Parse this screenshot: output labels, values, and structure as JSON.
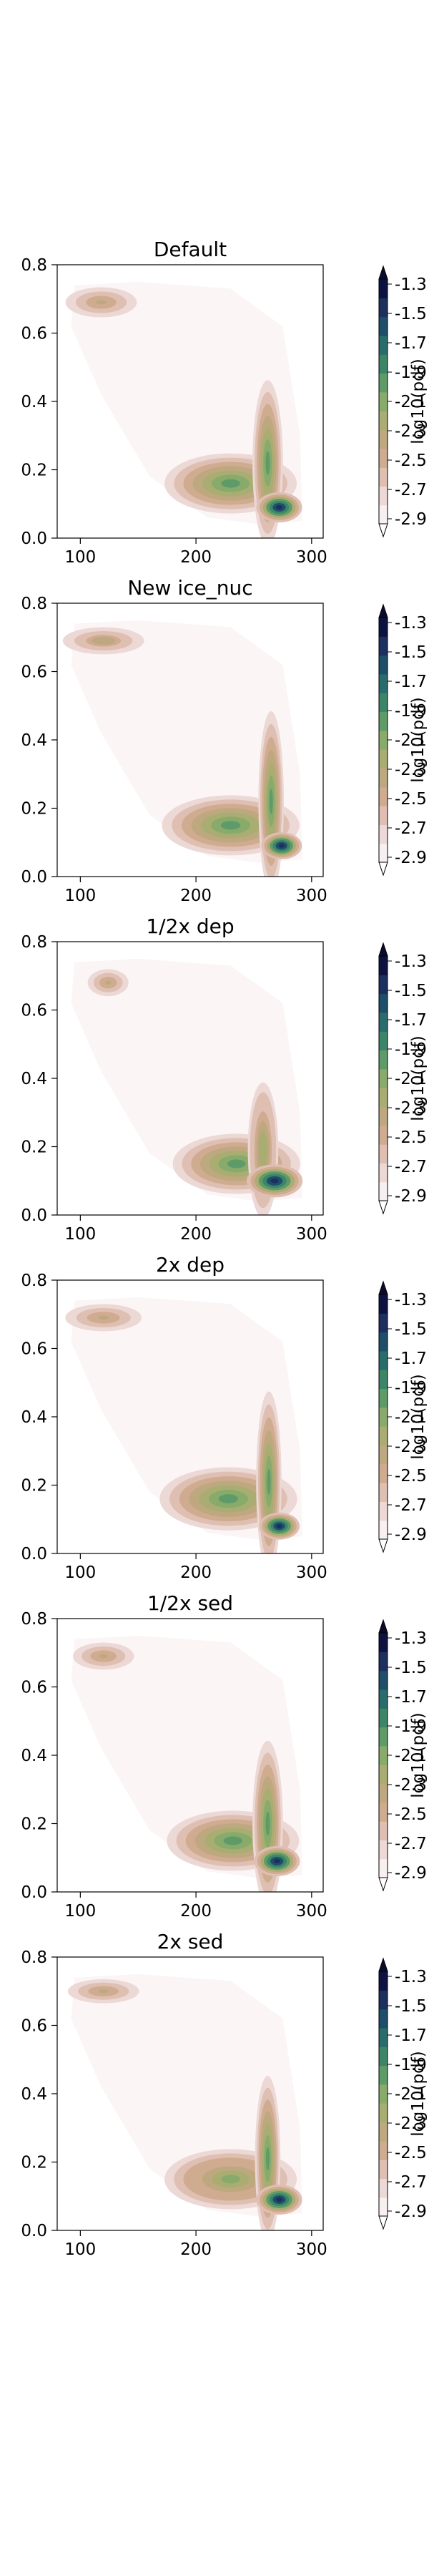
{
  "chart_data": [
    {
      "type": "heatmap",
      "title": "Default",
      "xlim": [
        80,
        310
      ],
      "ylim": [
        0,
        0.8
      ],
      "xticks": [
        100,
        200,
        300
      ],
      "yticks": [
        0.0,
        0.2,
        0.4,
        0.6,
        0.8
      ],
      "ytick_labels": [
        "0.0",
        "0.2",
        "0.4",
        "0.6",
        "0.8"
      ],
      "colorbar_ticks": [
        "-1.3",
        "-1.5",
        "-1.7",
        "-1.9",
        "-2.1",
        "-2.3",
        "-2.5",
        "-2.7",
        "-2.9"
      ],
      "colorbar_label": "log10(pdf)",
      "blobs": [
        {
          "x": 118,
          "y": 0.69,
          "sx": 14,
          "sy": 0.02,
          "level": 0.3
        },
        {
          "x": 230,
          "y": 0.16,
          "sx": 26,
          "sy": 0.04,
          "level": 0.55
        },
        {
          "x": 262,
          "y": 0.22,
          "sx": 6,
          "sy": 0.11,
          "level": 0.55
        },
        {
          "x": 272,
          "y": 0.09,
          "sx": 9,
          "sy": 0.02,
          "level": 0.95
        }
      ]
    },
    {
      "type": "heatmap",
      "title": "New ice_nuc",
      "xlim": [
        80,
        310
      ],
      "ylim": [
        0,
        0.8
      ],
      "xticks": [
        100,
        200,
        300
      ],
      "yticks": [
        0.0,
        0.2,
        0.4,
        0.6,
        0.8
      ],
      "ytick_labels": [
        "0.0",
        "0.2",
        "0.4",
        "0.6",
        "0.8"
      ],
      "colorbar_ticks": [
        "-1.3",
        "-1.5",
        "-1.7",
        "-1.9",
        "-2.1",
        "-2.3",
        "-2.5",
        "-2.7",
        "-2.9"
      ],
      "colorbar_label": "log10(pdf)",
      "blobs": [
        {
          "x": 120,
          "y": 0.69,
          "sx": 16,
          "sy": 0.018,
          "level": 0.35
        },
        {
          "x": 230,
          "y": 0.15,
          "sx": 27,
          "sy": 0.04,
          "level": 0.55
        },
        {
          "x": 265,
          "y": 0.22,
          "sx": 5,
          "sy": 0.12,
          "level": 0.6
        },
        {
          "x": 274,
          "y": 0.09,
          "sx": 8,
          "sy": 0.018,
          "level": 0.95
        }
      ]
    },
    {
      "type": "heatmap",
      "title": "1/2x dep",
      "xlim": [
        80,
        310
      ],
      "ylim": [
        0,
        0.8
      ],
      "xticks": [
        100,
        200,
        300
      ],
      "yticks": [
        0.0,
        0.2,
        0.4,
        0.6,
        0.8
      ],
      "ytick_labels": [
        "0.0",
        "0.2",
        "0.4",
        "0.6",
        "0.8"
      ],
      "colorbar_ticks": [
        "-1.3",
        "-1.5",
        "-1.7",
        "-1.9",
        "-2.1",
        "-2.3",
        "-2.5",
        "-2.7",
        "-2.9"
      ],
      "colorbar_label": "log10(pdf)",
      "blobs": [
        {
          "x": 124,
          "y": 0.68,
          "sx": 8,
          "sy": 0.018,
          "level": 0.3
        },
        {
          "x": 235,
          "y": 0.15,
          "sx": 25,
          "sy": 0.04,
          "level": 0.55
        },
        {
          "x": 258,
          "y": 0.19,
          "sx": 6,
          "sy": 0.09,
          "level": 0.45
        },
        {
          "x": 268,
          "y": 0.1,
          "sx": 11,
          "sy": 0.022,
          "level": 0.95
        }
      ]
    },
    {
      "type": "heatmap",
      "title": "2x dep",
      "xlim": [
        80,
        310
      ],
      "ylim": [
        0,
        0.8
      ],
      "xticks": [
        100,
        200,
        300
      ],
      "yticks": [
        0.0,
        0.2,
        0.4,
        0.6,
        0.8
      ],
      "ytick_labels": [
        "0.0",
        "0.2",
        "0.4",
        "0.6",
        "0.8"
      ],
      "colorbar_ticks": [
        "-1.3",
        "-1.5",
        "-1.7",
        "-1.9",
        "-2.1",
        "-2.3",
        "-2.5",
        "-2.7",
        "-2.9"
      ],
      "colorbar_label": "log10(pdf)",
      "blobs": [
        {
          "x": 120,
          "y": 0.69,
          "sx": 15,
          "sy": 0.018,
          "level": 0.3
        },
        {
          "x": 228,
          "y": 0.16,
          "sx": 27,
          "sy": 0.042,
          "level": 0.55
        },
        {
          "x": 263,
          "y": 0.21,
          "sx": 5,
          "sy": 0.12,
          "level": 0.55
        },
        {
          "x": 272,
          "y": 0.08,
          "sx": 8,
          "sy": 0.018,
          "level": 0.95
        }
      ]
    },
    {
      "type": "heatmap",
      "title": "1/2x sed",
      "xlim": [
        80,
        310
      ],
      "ylim": [
        0,
        0.8
      ],
      "xticks": [
        100,
        200,
        300
      ],
      "yticks": [
        0.0,
        0.2,
        0.4,
        0.6,
        0.8
      ],
      "ytick_labels": [
        "0.0",
        "0.2",
        "0.4",
        "0.6",
        "0.8"
      ],
      "colorbar_ticks": [
        "-1.3",
        "-1.5",
        "-1.7",
        "-1.9",
        "-2.1",
        "-2.3",
        "-2.5",
        "-2.7",
        "-2.9"
      ],
      "colorbar_label": "log10(pdf)",
      "blobs": [
        {
          "x": 120,
          "y": 0.69,
          "sx": 12,
          "sy": 0.018,
          "level": 0.3
        },
        {
          "x": 232,
          "y": 0.15,
          "sx": 26,
          "sy": 0.04,
          "level": 0.55
        },
        {
          "x": 262,
          "y": 0.2,
          "sx": 6,
          "sy": 0.11,
          "level": 0.55
        },
        {
          "x": 270,
          "y": 0.09,
          "sx": 9,
          "sy": 0.02,
          "level": 0.95
        }
      ]
    },
    {
      "type": "heatmap",
      "title": "2x sed",
      "xlim": [
        80,
        310
      ],
      "ylim": [
        0,
        0.8
      ],
      "xticks": [
        100,
        200,
        300
      ],
      "yticks": [
        0.0,
        0.2,
        0.4,
        0.6,
        0.8
      ],
      "ytick_labels": [
        "0.0",
        "0.2",
        "0.4",
        "0.6",
        "0.8"
      ],
      "colorbar_ticks": [
        "-1.3",
        "-1.5",
        "-1.7",
        "-1.9",
        "-2.1",
        "-2.3",
        "-2.5",
        "-2.7",
        "-2.9"
      ],
      "colorbar_label": "log10(pdf)",
      "blobs": [
        {
          "x": 120,
          "y": 0.7,
          "sx": 14,
          "sy": 0.016,
          "level": 0.3
        },
        {
          "x": 230,
          "y": 0.15,
          "sx": 26,
          "sy": 0.04,
          "level": 0.5
        },
        {
          "x": 262,
          "y": 0.21,
          "sx": 5,
          "sy": 0.11,
          "level": 0.55
        },
        {
          "x": 272,
          "y": 0.09,
          "sx": 9,
          "sy": 0.02,
          "level": 0.95
        }
      ]
    }
  ],
  "colors": {
    "colormap": [
      "#f7eff0",
      "#ecd8d5",
      "#dfbfb2",
      "#cfab8f",
      "#bda87f",
      "#a9ad72",
      "#88aa6b",
      "#5f9b68",
      "#3c8569",
      "#2a6c6c",
      "#1f4e6a",
      "#1c2f5e",
      "#0d1340"
    ],
    "under": "#ffffff",
    "over": "#0b0b2e",
    "envelope": "#fbf5f6"
  }
}
